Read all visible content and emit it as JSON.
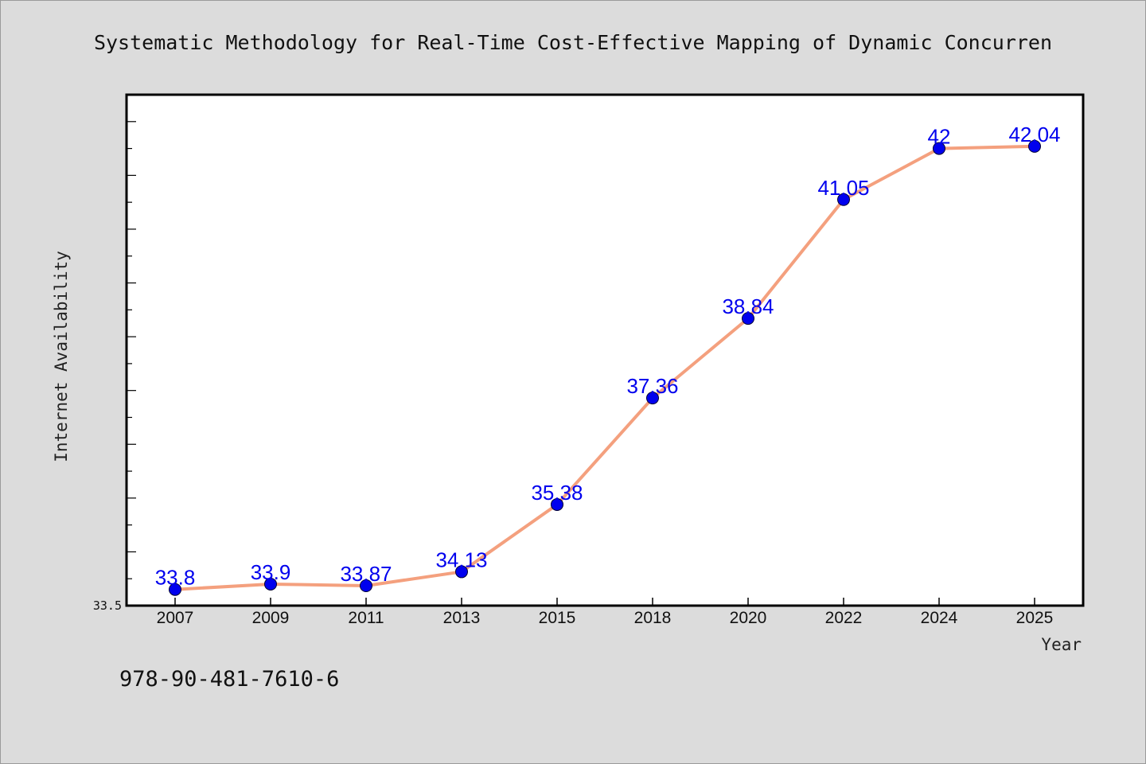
{
  "chart_data": {
    "type": "line",
    "title": "Systematic Methodology for Real-Time Cost-Effective Mapping of Dynamic Concurren",
    "xlabel": "Year",
    "ylabel": "Internet Availability",
    "categories": [
      "2007",
      "2009",
      "2011",
      "2013",
      "2015",
      "2018",
      "2020",
      "2022",
      "2024",
      "2025"
    ],
    "series": [
      {
        "values": [
          33.8,
          33.9,
          33.87,
          34.13,
          35.38,
          37.36,
          38.84,
          41.05,
          42,
          42.04
        ],
        "labels": [
          "33.8",
          "33.9",
          "33.87",
          "34.13",
          "35.38",
          "37.36",
          "38.84",
          "41.05",
          "42",
          "42.04"
        ]
      }
    ],
    "ylim": [
      33.5,
      43.0
    ],
    "y_tick_labels": [
      "33.5"
    ],
    "grid": false,
    "line_color": "#f4a07e",
    "marker_color": "#0000ee",
    "label_color": "#0000ee"
  },
  "footer": {
    "isbn": "978-90-481-7610-6"
  }
}
